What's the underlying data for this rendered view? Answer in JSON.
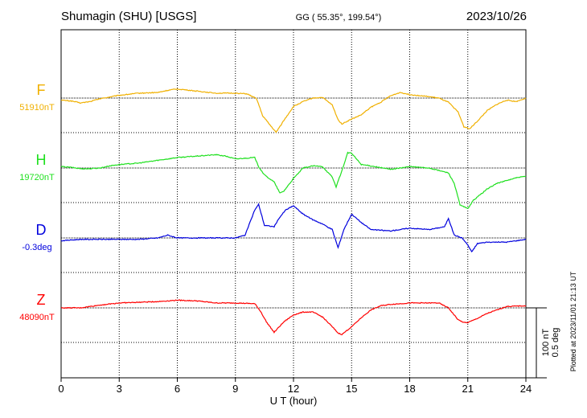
{
  "header": {
    "station": "Shumagin (SHU)  [USGS]",
    "coords": "GG ( 55.35°, 199.54°)",
    "date": "2023/10/26"
  },
  "footer": {
    "plotted": "Plotted at 2023/11/01 21:13 UT"
  },
  "chart_data": {
    "type": "line",
    "title": "Shumagin (SHU)  [USGS]",
    "xlabel": "U T (hour)",
    "xlim": [
      0,
      24
    ],
    "x_ticks": [
      0,
      3,
      6,
      9,
      12,
      15,
      18,
      21,
      24
    ],
    "x_tick_labels": [
      "0",
      "3",
      "6",
      "9",
      "12",
      "15",
      "18",
      "21",
      "24"
    ],
    "scale_bar": {
      "value_nT": 100,
      "value_deg": 0.5,
      "label_nT": "100 nT",
      "label_deg": "0.5 deg"
    },
    "series": [
      {
        "name": "F",
        "baseline_label": "51910nT",
        "baseline": 51910,
        "unit": "nT",
        "color": "#f0b000",
        "points": [
          [
            0,
            51907
          ],
          [
            0.5,
            51906
          ],
          [
            1,
            51903
          ],
          [
            1.5,
            51905
          ],
          [
            2,
            51909
          ],
          [
            3,
            51914
          ],
          [
            4,
            51917
          ],
          [
            5,
            51918
          ],
          [
            5.5,
            51921
          ],
          [
            6,
            51923
          ],
          [
            7,
            51920
          ],
          [
            8,
            51917
          ],
          [
            9,
            51917
          ],
          [
            9.6,
            51916
          ],
          [
            10.1,
            51909
          ],
          [
            10.4,
            51885
          ],
          [
            10.8,
            51871
          ],
          [
            11.1,
            51861
          ],
          [
            11.5,
            51878
          ],
          [
            12,
            51898
          ],
          [
            12.5,
            51905
          ],
          [
            13,
            51910
          ],
          [
            13.5,
            51911
          ],
          [
            14,
            51900
          ],
          [
            14.3,
            51879
          ],
          [
            14.5,
            51873
          ],
          [
            15,
            51880
          ],
          [
            15.5,
            51886
          ],
          [
            16,
            51897
          ],
          [
            16.5,
            51904
          ],
          [
            17,
            51913
          ],
          [
            17.5,
            51918
          ],
          [
            18,
            51915
          ],
          [
            19,
            51912
          ],
          [
            19.5,
            51910
          ],
          [
            20,
            51904
          ],
          [
            20.5,
            51890
          ],
          [
            20.8,
            51869
          ],
          [
            21.1,
            51866
          ],
          [
            21.5,
            51877
          ],
          [
            22,
            51892
          ],
          [
            22.5,
            51901
          ],
          [
            23,
            51907
          ],
          [
            23.5,
            51905
          ],
          [
            24,
            51910
          ]
        ]
      },
      {
        "name": "H",
        "baseline_label": "19720nT",
        "baseline": 19720,
        "unit": "nT",
        "color": "#20e020",
        "points": [
          [
            0,
            19722
          ],
          [
            0.5,
            19721
          ],
          [
            1,
            19719
          ],
          [
            1.5,
            19719
          ],
          [
            2,
            19720
          ],
          [
            2.5,
            19723
          ],
          [
            3,
            19725
          ],
          [
            4,
            19727
          ],
          [
            5,
            19731
          ],
          [
            6,
            19735
          ],
          [
            7,
            19737
          ],
          [
            8,
            19739
          ],
          [
            8.5,
            19737
          ],
          [
            9,
            19733
          ],
          [
            9.5,
            19734
          ],
          [
            10,
            19735
          ],
          [
            10.2,
            19722
          ],
          [
            10.5,
            19710
          ],
          [
            11,
            19700
          ],
          [
            11.3,
            19684
          ],
          [
            11.5,
            19687
          ],
          [
            12,
            19705
          ],
          [
            12.5,
            19720
          ],
          [
            13,
            19723
          ],
          [
            13.5,
            19722
          ],
          [
            14,
            19707
          ],
          [
            14.2,
            19693
          ],
          [
            14.5,
            19716
          ],
          [
            14.8,
            19742
          ],
          [
            15,
            19741
          ],
          [
            15.5,
            19725
          ],
          [
            16,
            19723
          ],
          [
            17,
            19718
          ],
          [
            18,
            19722
          ],
          [
            19,
            19720
          ],
          [
            20,
            19713
          ],
          [
            20.3,
            19698
          ],
          [
            20.6,
            19667
          ],
          [
            21,
            19662
          ],
          [
            21.3,
            19674
          ],
          [
            22,
            19690
          ],
          [
            22.5,
            19698
          ],
          [
            23,
            19702
          ],
          [
            23.5,
            19706
          ],
          [
            24,
            19708
          ]
        ]
      },
      {
        "name": "D",
        "baseline_label": "-0.3deg",
        "baseline": -0.3,
        "unit": "deg",
        "color": "#0000dd",
        "points": [
          [
            0,
            -0.32
          ],
          [
            1,
            -0.31
          ],
          [
            2,
            -0.31
          ],
          [
            3,
            -0.31
          ],
          [
            4,
            -0.31
          ],
          [
            5,
            -0.3
          ],
          [
            5.5,
            -0.28
          ],
          [
            6,
            -0.3
          ],
          [
            7,
            -0.3
          ],
          [
            8,
            -0.3
          ],
          [
            9,
            -0.3
          ],
          [
            9.5,
            -0.28
          ],
          [
            10,
            -0.1
          ],
          [
            10.2,
            -0.06
          ],
          [
            10.5,
            -0.21
          ],
          [
            11,
            -0.22
          ],
          [
            11.3,
            -0.15
          ],
          [
            11.6,
            -0.1
          ],
          [
            12,
            -0.07
          ],
          [
            12.5,
            -0.13
          ],
          [
            13,
            -0.17
          ],
          [
            13.5,
            -0.2
          ],
          [
            14,
            -0.24
          ],
          [
            14.3,
            -0.37
          ],
          [
            14.6,
            -0.24
          ],
          [
            15,
            -0.13
          ],
          [
            15.5,
            -0.19
          ],
          [
            16,
            -0.24
          ],
          [
            17,
            -0.25
          ],
          [
            18,
            -0.23
          ],
          [
            19,
            -0.24
          ],
          [
            19.8,
            -0.22
          ],
          [
            20,
            -0.16
          ],
          [
            20.3,
            -0.28
          ],
          [
            20.7,
            -0.3
          ],
          [
            21,
            -0.35
          ],
          [
            21.2,
            -0.4
          ],
          [
            21.5,
            -0.34
          ],
          [
            22,
            -0.33
          ],
          [
            23,
            -0.33
          ],
          [
            24,
            -0.31
          ]
        ]
      },
      {
        "name": "Z",
        "baseline_label": "48090nT",
        "baseline": 48090,
        "unit": "nT",
        "color": "#ff0000",
        "points": [
          [
            0,
            48090
          ],
          [
            1,
            48090
          ],
          [
            2,
            48094
          ],
          [
            3,
            48097
          ],
          [
            4,
            48098
          ],
          [
            5,
            48099
          ],
          [
            6,
            48101
          ],
          [
            7,
            48100
          ],
          [
            8,
            48097
          ],
          [
            9,
            48097
          ],
          [
            10,
            48096
          ],
          [
            10.3,
            48085
          ],
          [
            10.6,
            48070
          ],
          [
            11,
            48055
          ],
          [
            11.5,
            48070
          ],
          [
            12,
            48080
          ],
          [
            12.5,
            48084
          ],
          [
            13,
            48084
          ],
          [
            13.5,
            48077
          ],
          [
            14,
            48063
          ],
          [
            14.3,
            48054
          ],
          [
            14.5,
            48052
          ],
          [
            15,
            48063
          ],
          [
            15.5,
            48076
          ],
          [
            16,
            48087
          ],
          [
            16.5,
            48093
          ],
          [
            17,
            48095
          ],
          [
            18,
            48097
          ],
          [
            19,
            48097
          ],
          [
            19.5,
            48097
          ],
          [
            20,
            48090
          ],
          [
            20.5,
            48073
          ],
          [
            20.8,
            48069
          ],
          [
            21,
            48069
          ],
          [
            21.5,
            48075
          ],
          [
            22,
            48082
          ],
          [
            22.5,
            48087
          ],
          [
            23,
            48092
          ],
          [
            24,
            48093
          ]
        ]
      }
    ]
  }
}
